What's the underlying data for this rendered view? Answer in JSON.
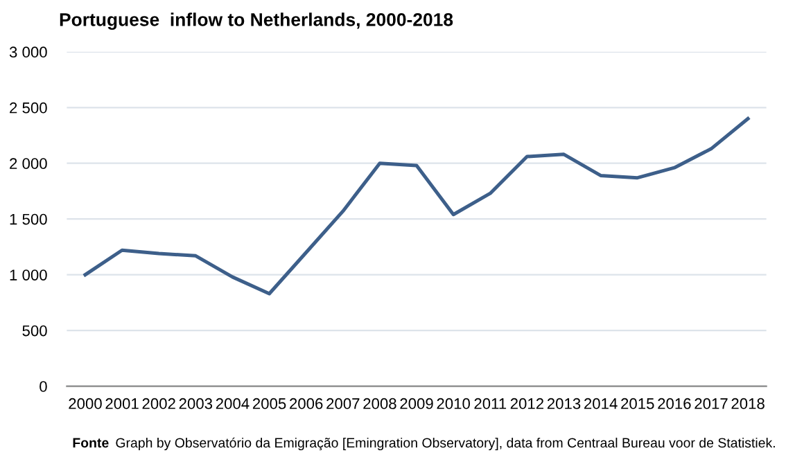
{
  "chart_data": {
    "type": "line",
    "title": "Portuguese  inflow to Netherlands, 2000-2018",
    "categories": [
      "2000",
      "2001",
      "2002",
      "2003",
      "2004",
      "2005",
      "2006",
      "2007",
      "2008",
      "2009",
      "2010",
      "2011",
      "2012",
      "2013",
      "2014",
      "2015",
      "2016",
      "2017",
      "2018"
    ],
    "series": [
      {
        "color": "#3d5f8a",
        "values": [
          1000,
          1220,
          1190,
          1170,
          980,
          830,
          1200,
          1570,
          2000,
          1980,
          1540,
          1730,
          2060,
          2080,
          1890,
          1870,
          1960,
          2130,
          2400
        ]
      }
    ],
    "ylim": [
      0,
      3000
    ],
    "yticks": [
      0,
      500,
      {
        "value": 1000,
        "label": "1 000"
      },
      {
        "value": 1500,
        "label": "1 500"
      },
      {
        "value": 2000,
        "label": "2 000"
      },
      {
        "value": 2500,
        "label": "2 500"
      },
      {
        "value": 3000,
        "label": "3 000"
      }
    ],
    "grid": "y",
    "marker": "none",
    "line_style": "solid",
    "annotations": [
      "Fonte",
      "Graph by Observatório da Emigração [Emingration Observatory], data from Centraal Bureau voor de Statistiek."
    ]
  }
}
